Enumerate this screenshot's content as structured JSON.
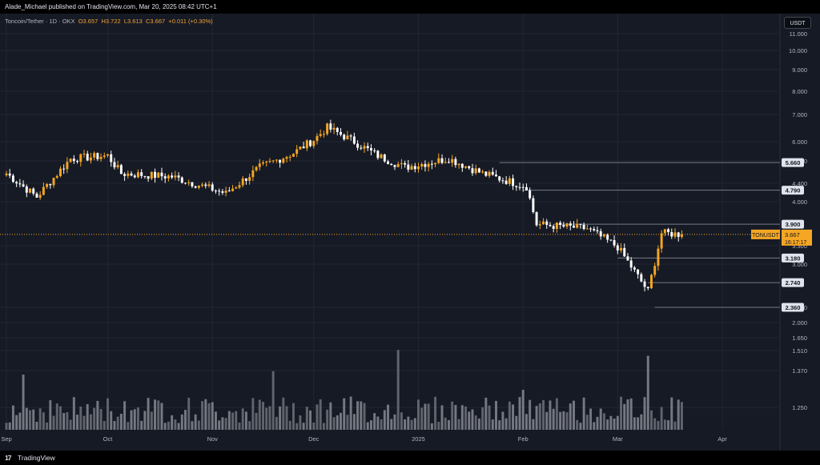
{
  "header": {
    "published": "Alade_Michael published on TradingView.com, Mar 20, 2025 08:42 UTC+1"
  },
  "legend": {
    "symbol": "Toncoin/Tether · 1D · OKX",
    "open": "O3.657",
    "high": "H3.722",
    "low": "L3.613",
    "close": "C3.667",
    "change": "+0.011 (+0.30%)"
  },
  "currency_button": "USDT",
  "price_axis": {
    "ticks": [
      "11.000",
      "10.000",
      "9.000",
      "8.000",
      "7.000",
      "6.000",
      "5.400",
      "4.400",
      "4.000",
      "3.300",
      "3.000",
      "2.200",
      "2.000",
      "1.650",
      "1.510",
      "1.370",
      "1.250"
    ],
    "level_labels": [
      "5.660",
      "4.790",
      "3.900",
      "3.180",
      "2.740",
      "2.360"
    ],
    "current": {
      "symbol": "TONUSDT",
      "price": "3.667",
      "countdown": "16:17:17"
    }
  },
  "time_axis": {
    "labels": [
      "Sep",
      "Oct",
      "Nov",
      "Dec",
      "2025",
      "Feb",
      "Mar",
      "Apr"
    ]
  },
  "footer": {
    "logo": "17",
    "brand": "TradingView"
  },
  "colors": {
    "up": "#f5a623",
    "down": "#ffffff",
    "background": "#161a25",
    "level_line": "#787b86",
    "price_line": "#f5a623"
  },
  "chart_data": {
    "type": "candlestick",
    "symbol": "TONUSDT",
    "exchange": "OKX",
    "interval": "1D",
    "levels": [
      5.66,
      4.79,
      3.9,
      3.18,
      2.74,
      2.36
    ],
    "current_price": 3.667,
    "x_range": [
      "2024-09-01",
      "2025-04-10"
    ],
    "y_scale": "log",
    "monthly_path": [
      [
        "2024-09-01",
        5.3
      ],
      [
        "2024-09-10",
        4.6
      ],
      [
        "2024-09-20",
        5.8
      ],
      [
        "2024-10-01",
        5.9
      ],
      [
        "2024-10-05",
        5.3
      ],
      [
        "2024-10-20",
        5.2
      ],
      [
        "2024-11-05",
        4.7
      ],
      [
        "2024-11-15",
        5.5
      ],
      [
        "2024-11-25",
        6.0
      ],
      [
        "2024-12-01",
        6.5
      ],
      [
        "2024-12-05",
        7.0
      ],
      [
        "2024-12-12",
        6.5
      ],
      [
        "2024-12-20",
        5.9
      ],
      [
        "2024-12-28",
        5.5
      ],
      [
        "2025-01-10",
        5.8
      ],
      [
        "2025-01-20",
        5.3
      ],
      [
        "2025-02-02",
        4.9
      ],
      [
        "2025-02-05",
        3.9
      ],
      [
        "2025-02-20",
        3.8
      ],
      [
        "2025-03-01",
        3.4
      ],
      [
        "2025-03-10",
        2.6
      ],
      [
        "2025-03-14",
        3.7
      ],
      [
        "2025-03-20",
        3.667
      ]
    ]
  }
}
